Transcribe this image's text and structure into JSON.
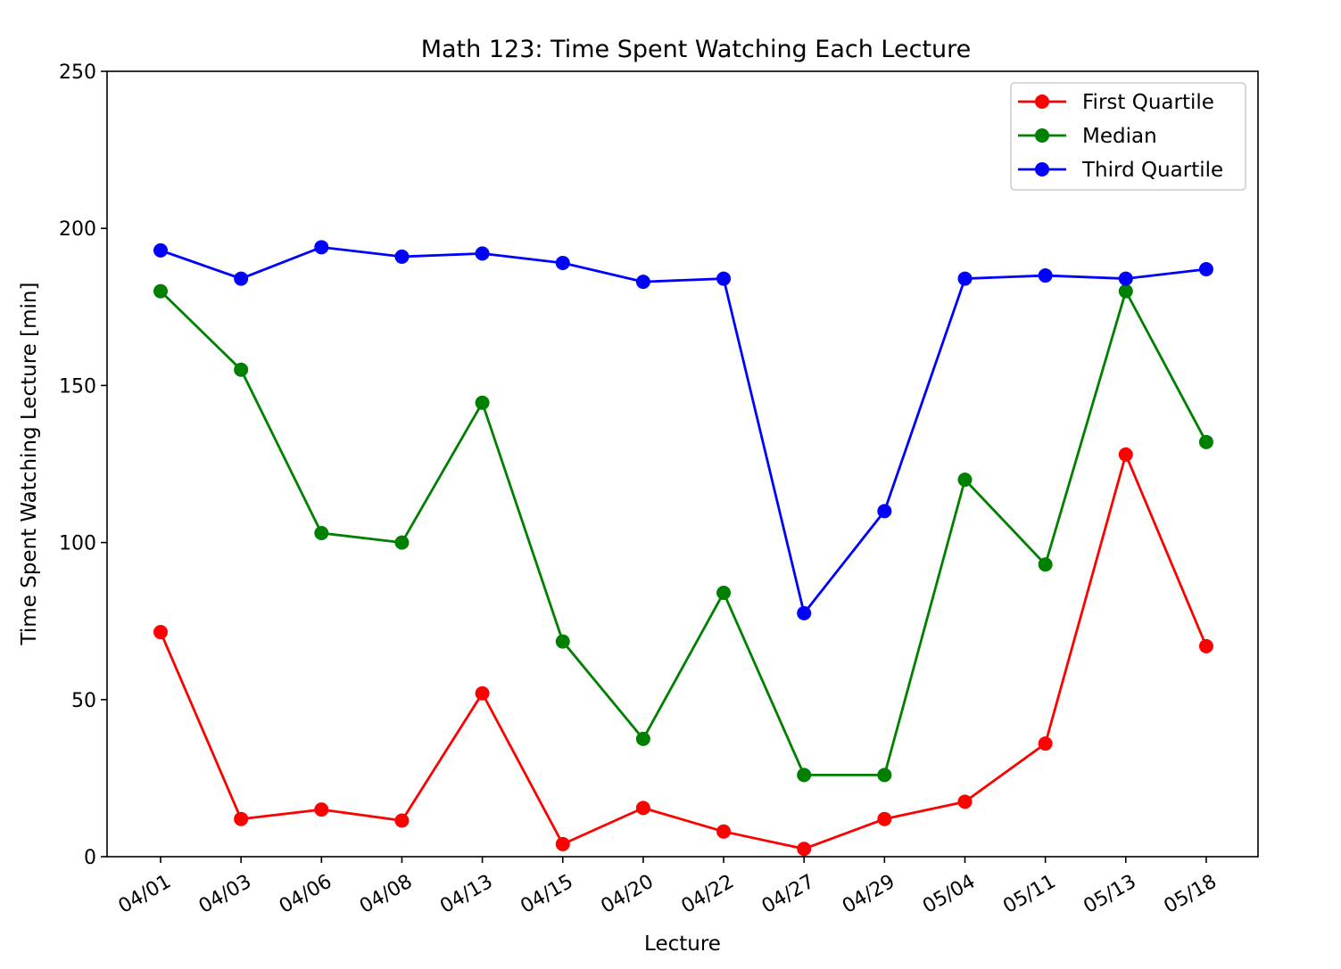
{
  "chart_data": {
    "type": "line",
    "title": "Math 123: Time Spent Watching Each Lecture",
    "xlabel": "Lecture",
    "ylabel": "Time Spent Watching Lecture [min]",
    "ylim": [
      0,
      250
    ],
    "yticks": [
      0,
      50,
      100,
      150,
      200,
      250
    ],
    "grid": false,
    "legend_position": "top-right",
    "categories": [
      "04/01",
      "04/03",
      "04/06",
      "04/08",
      "04/13",
      "04/15",
      "04/20",
      "04/22",
      "04/27",
      "04/29",
      "05/04",
      "05/11",
      "05/13",
      "05/18"
    ],
    "series": [
      {
        "name": "First Quartile",
        "color": "#ff0000",
        "values": [
          71.5,
          12,
          15,
          11.5,
          52,
          4,
          15.5,
          8,
          2.5,
          12,
          17.5,
          36,
          128,
          67
        ]
      },
      {
        "name": "Median",
        "color": "#008000",
        "values": [
          180,
          155,
          103,
          100,
          144.5,
          68.5,
          37.5,
          84,
          26,
          26,
          120,
          93,
          180,
          132
        ]
      },
      {
        "name": "Third Quartile",
        "color": "#0000ff",
        "values": [
          193,
          184,
          194,
          191,
          192,
          189,
          183,
          184,
          77.5,
          110,
          184,
          185,
          184,
          187
        ]
      }
    ]
  }
}
